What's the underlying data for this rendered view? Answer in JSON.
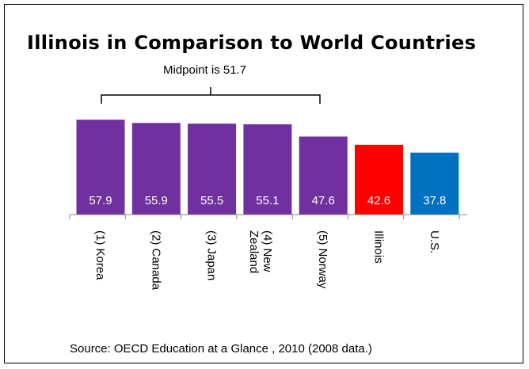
{
  "chart_data": {
    "type": "bar",
    "title": "Illinois in Comparison to World Countries",
    "annotation": "Midpoint is 51.7",
    "source": "Source:  OECD Education at a Glance , 2010 (2008 data.)",
    "categories": [
      "(1) Korea",
      "(2) Canada",
      "(3) Japan",
      "(4) New Zealand",
      "(5) Norway",
      "Illinois",
      "U.S."
    ],
    "values": [
      57.9,
      55.9,
      55.5,
      55.1,
      47.6,
      42.6,
      37.8
    ],
    "value_labels": [
      "57.9",
      "55.9",
      "55.5",
      "55.1",
      "47.6",
      "42.6",
      "37.8"
    ],
    "colors": [
      "#7030A0",
      "#7030A0",
      "#7030A0",
      "#7030A0",
      "#7030A0",
      "#FF0000",
      "#0070C0"
    ],
    "ylim": [
      0,
      60
    ],
    "grid": false,
    "legend": "none"
  }
}
